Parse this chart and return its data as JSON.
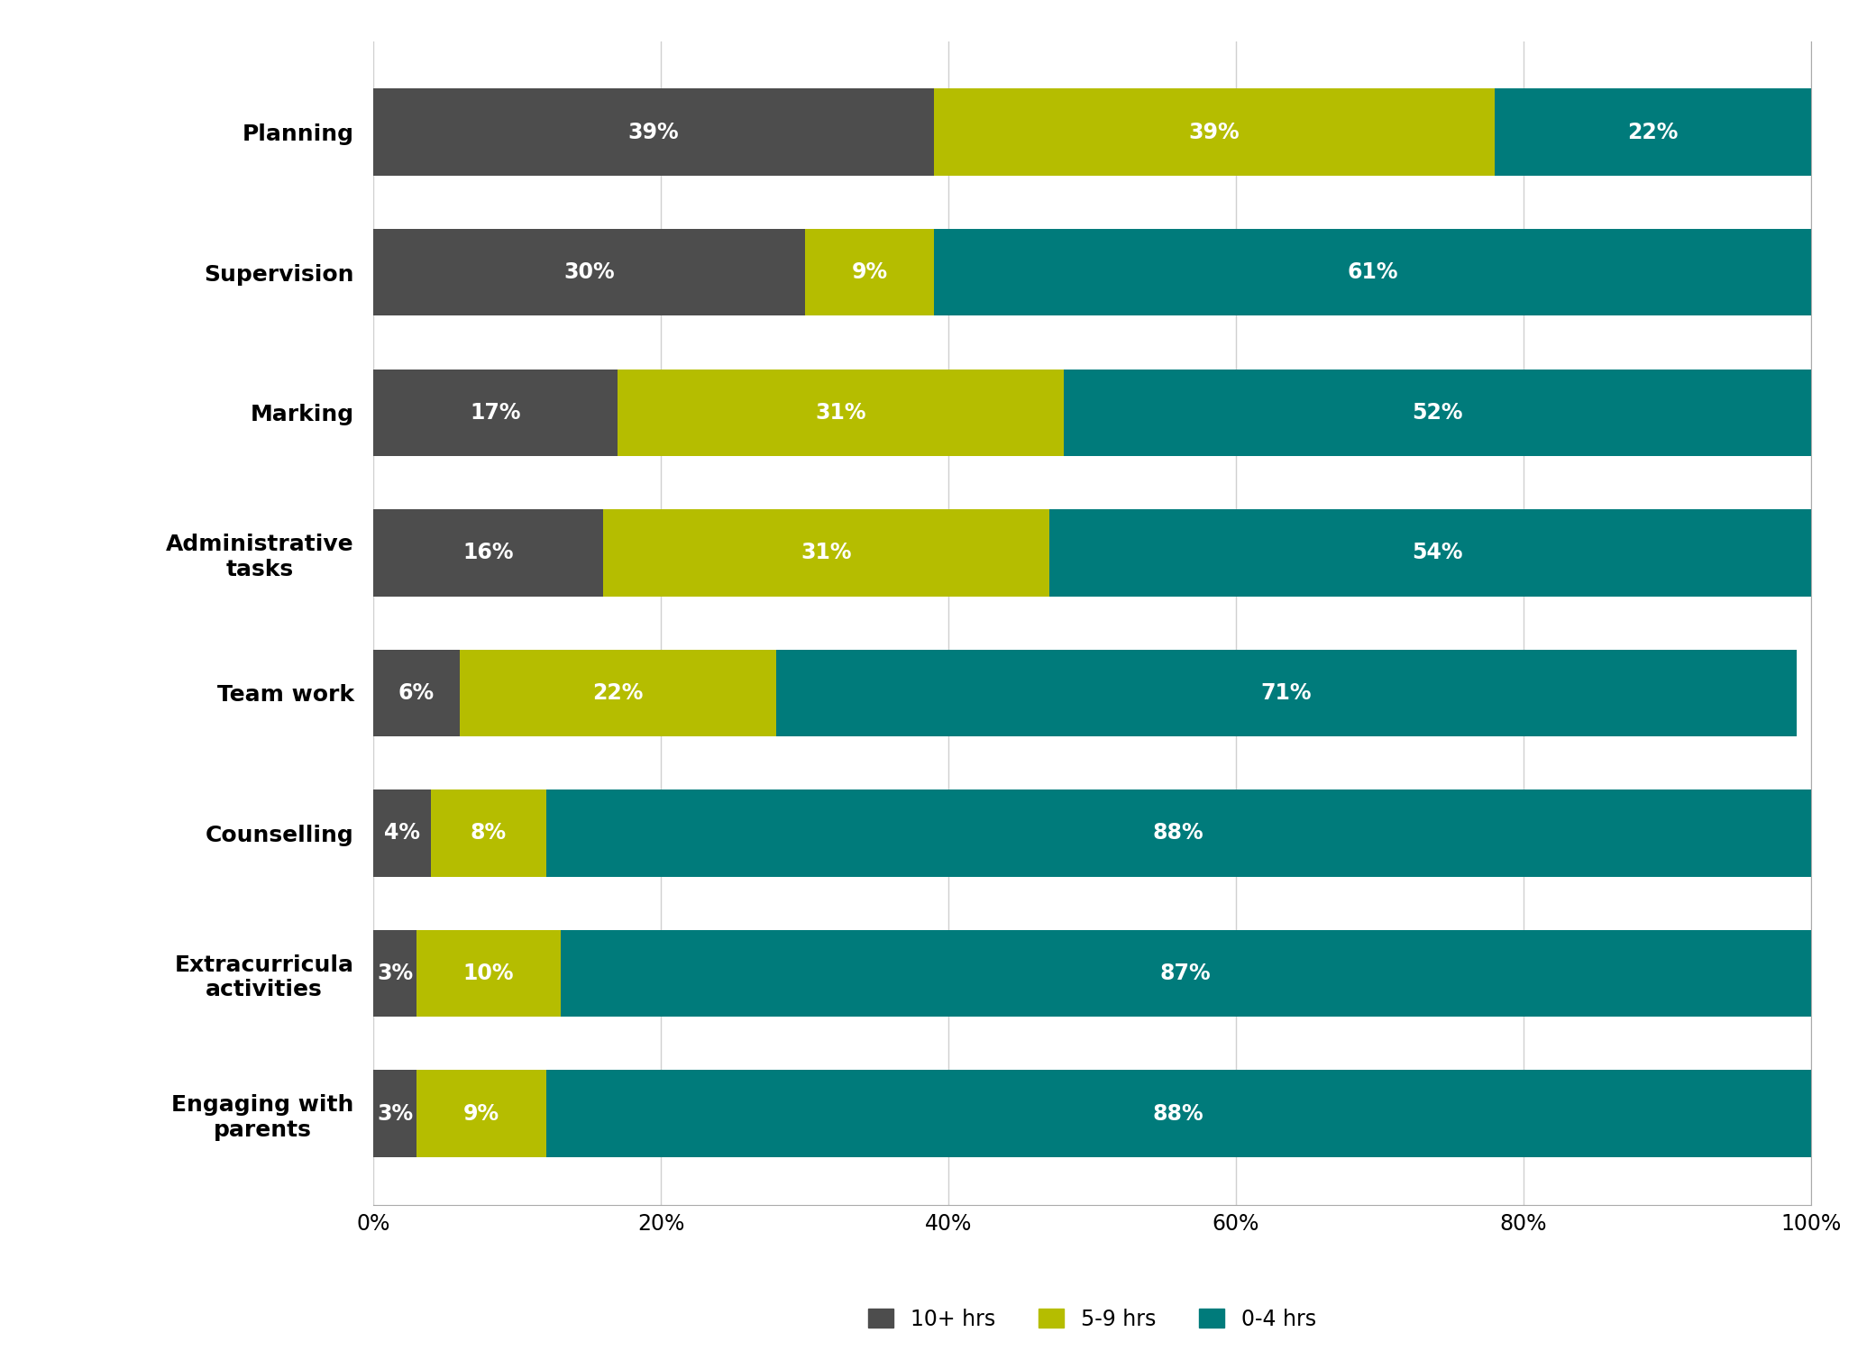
{
  "categories": [
    "Planning",
    "Supervision",
    "Marking",
    "Administrative\ntasks",
    "Team work",
    "Counselling",
    "Extracurricula\nactivities",
    "Engaging with\nparents"
  ],
  "series": {
    "10+ hrs": [
      39,
      30,
      17,
      16,
      6,
      4,
      3,
      3
    ],
    "5-9 hrs": [
      39,
      9,
      31,
      31,
      22,
      8,
      10,
      9
    ],
    "0-4 hrs": [
      22,
      61,
      52,
      54,
      71,
      88,
      87,
      88
    ]
  },
  "colors": {
    "10+ hrs": "#4d4d4d",
    "5-9 hrs": "#b5bd00",
    "0-4 hrs": "#007b7b"
  },
  "bar_height": 0.62,
  "xlim": [
    0,
    100
  ],
  "xticks": [
    0,
    20,
    40,
    60,
    80,
    100
  ],
  "xticklabels": [
    "0%",
    "20%",
    "40%",
    "60%",
    "80%",
    "100%"
  ],
  "background_color": "#ffffff",
  "label_fontsize": 18,
  "tick_fontsize": 17,
  "legend_fontsize": 17,
  "bar_label_fontsize": 17,
  "grid_color": "#d0d0d0",
  "spine_color": "#aaaaaa"
}
